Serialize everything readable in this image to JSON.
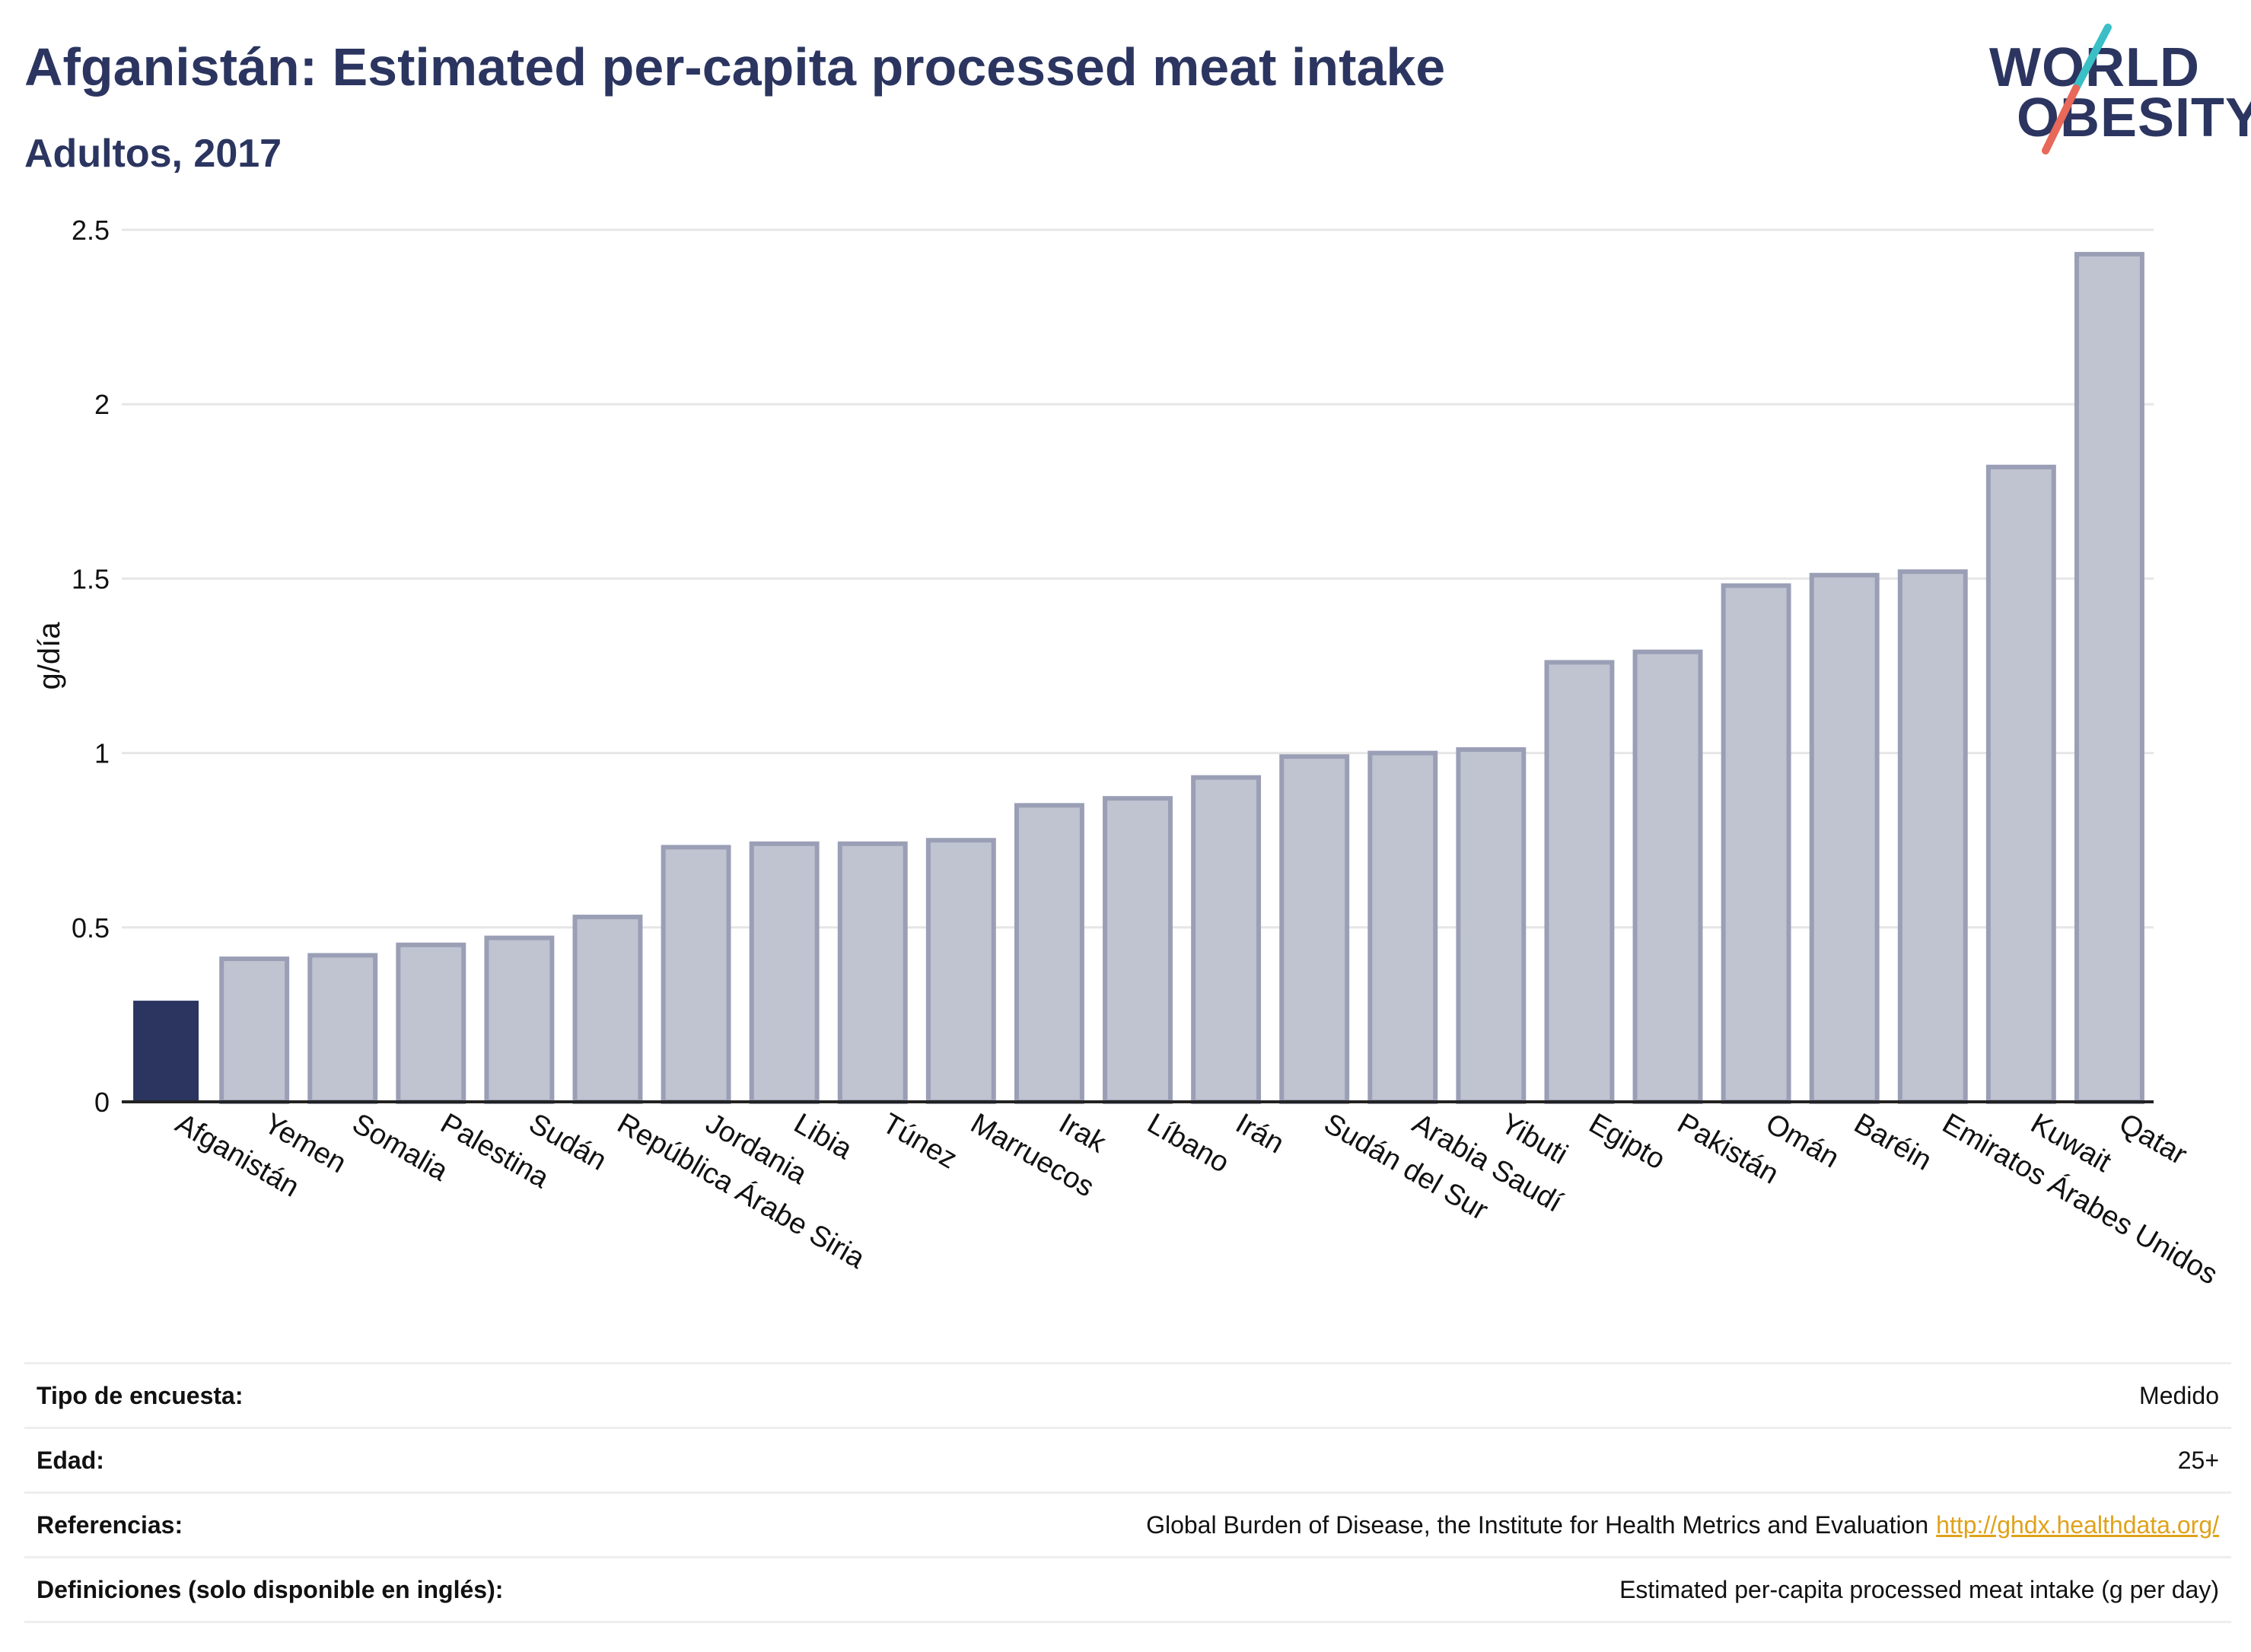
{
  "header": {
    "title": "Afganistán: Estimated per-capita processed meat intake",
    "subtitle": "Adultos, 2017"
  },
  "logo": {
    "line1": "WORLD",
    "line2": "OBESITY",
    "colors": {
      "text": "#2b3560",
      "slash_top": "#3bbfc6",
      "slash_bottom": "#e8685a"
    }
  },
  "chart_data": {
    "type": "bar",
    "title": "Afganistán: Estimated per-capita processed meat intake",
    "subtitle": "Adultos, 2017",
    "xlabel": "",
    "ylabel": "g/día",
    "ylim": [
      0,
      2.5
    ],
    "yticks": [
      0,
      0.5,
      1,
      1.5,
      2,
      2.5
    ],
    "ytick_labels": [
      "0",
      "0.5",
      "1",
      "1.5",
      "2",
      "2.5"
    ],
    "grid": true,
    "highlight": "Afganistán",
    "colors": {
      "highlight": "#2b3560",
      "bar_fill": "#c0c3d0",
      "bar_edge": "#9a9fb6"
    },
    "categories": [
      "Afganistán",
      "Yemen",
      "Somalia",
      "Palestina",
      "Sudán",
      "República Árabe Siria",
      "Jordania",
      "Libia",
      "Túnez",
      "Marruecos",
      "Irak",
      "Líbano",
      "Irán",
      "Sudán del Sur",
      "Arabia Saudí",
      "Yibuti",
      "Egipto",
      "Pakistán",
      "Omán",
      "Baréin",
      "Emiratos Árabes Unidos",
      "Kuwait",
      "Qatar"
    ],
    "values": [
      0.29,
      0.41,
      0.42,
      0.45,
      0.47,
      0.53,
      0.73,
      0.74,
      0.74,
      0.75,
      0.85,
      0.87,
      0.93,
      0.99,
      1.0,
      1.01,
      1.26,
      1.29,
      1.48,
      1.51,
      1.52,
      1.82,
      2.43
    ]
  },
  "meta": {
    "survey_label": "Tipo de encuesta:",
    "survey_value": "Medido",
    "age_label": "Edad:",
    "age_value": "25+",
    "refs_label": "Referencias:",
    "refs_value": "Global Burden of Disease, the Institute for Health Metrics and Evaluation",
    "refs_link": "http://ghdx.healthdata.org/",
    "defs_label": "Definiciones (solo disponible en inglés):",
    "defs_value": "Estimated per-capita processed meat intake (g per day)"
  }
}
